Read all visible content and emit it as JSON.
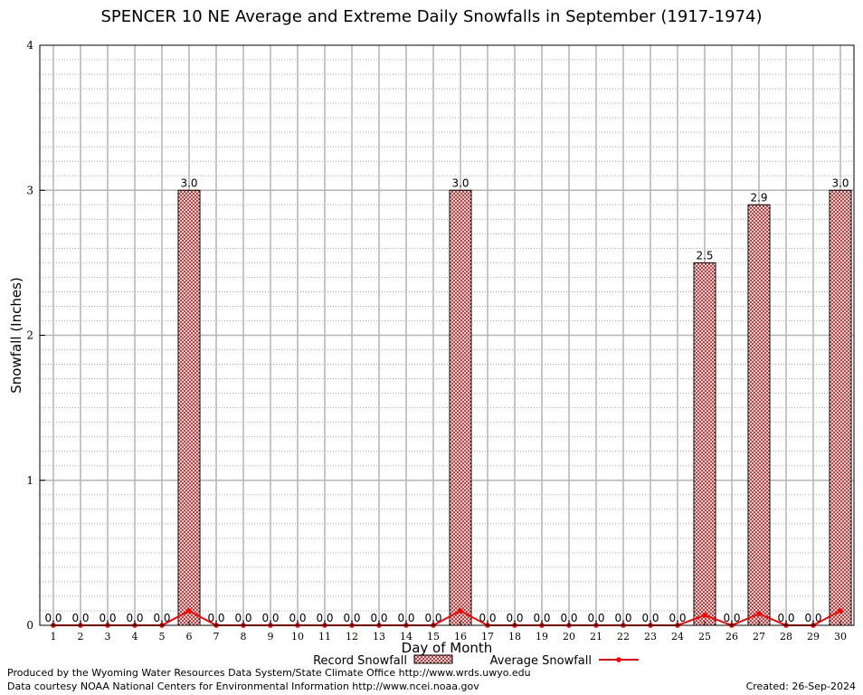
{
  "chart_data": {
    "type": "bar",
    "title": "SPENCER 10 NE Average and Extreme Daily Snowfalls in September (1917-1974)",
    "xlabel": "Day of Month",
    "ylabel": "Snowfall (Inches)",
    "ylim": [
      0,
      4
    ],
    "yticks": [
      "0",
      "1",
      "2",
      "3",
      "4"
    ],
    "categories": [
      "1",
      "2",
      "3",
      "4",
      "5",
      "6",
      "7",
      "8",
      "9",
      "10",
      "11",
      "12",
      "13",
      "14",
      "15",
      "16",
      "17",
      "18",
      "19",
      "20",
      "21",
      "22",
      "23",
      "24",
      "25",
      "26",
      "27",
      "28",
      "29",
      "30"
    ],
    "series": [
      {
        "name": "Record Snowfall",
        "kind": "bar",
        "color": "#b22222",
        "values": [
          0,
          0,
          0,
          0,
          0,
          3.0,
          0,
          0,
          0,
          0,
          0,
          0,
          0,
          0,
          0,
          3.0,
          0,
          0,
          0,
          0,
          0,
          0,
          0,
          0,
          2.5,
          0,
          2.9,
          0,
          0,
          3.0
        ],
        "labels": [
          "0.0",
          "0.0",
          "0.0",
          "0.0",
          "0.0",
          "3.0",
          "0.0",
          "0.0",
          "0.0",
          "0.0",
          "0.0",
          "0.0",
          "0.0",
          "0.0",
          "0.0",
          "3.0",
          "0.0",
          "0.0",
          "0.0",
          "0.0",
          "0.0",
          "0.0",
          "0.0",
          "0.0",
          "2.5",
          "0.0",
          "2.9",
          "0.0",
          "0.0",
          "3.0"
        ]
      },
      {
        "name": "Average Snowfall",
        "kind": "line",
        "color": "#ff0000",
        "values": [
          0,
          0,
          0,
          0,
          0,
          0.1,
          0,
          0,
          0,
          0,
          0,
          0,
          0,
          0,
          0,
          0.1,
          0,
          0,
          0,
          0,
          0,
          0,
          0,
          0,
          0.07,
          0,
          0.08,
          0,
          0,
          0.1
        ]
      }
    ],
    "legend_position": "bottom-center",
    "grid": true
  },
  "footer": {
    "line1": "Produced by the Wyoming Water Resources Data System/State Climate Office http://www.wrds.uwyo.edu",
    "line2": "Data courtesy NOAA National Centers for Environmental Information http://www.ncei.noaa.gov",
    "created": "Created:  26-Sep-2024"
  }
}
